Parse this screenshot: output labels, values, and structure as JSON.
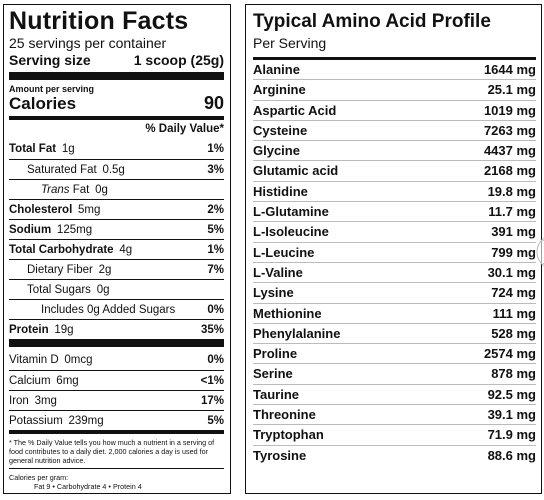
{
  "nutrition": {
    "title": "Nutrition Facts",
    "servings": "25 servings per container",
    "serving_size_label": "Serving size",
    "serving_size_value": "1 scoop (25g)",
    "amount_per_serving": "Amount per serving",
    "calories_label": "Calories",
    "calories_value": "90",
    "dv_header": "% Daily Value*",
    "rows": [
      {
        "label_bold": "Total Fat",
        "amount": "1g",
        "pct": "1%"
      },
      {
        "label": "Saturated Fat",
        "amount": "0.5g",
        "pct": "3%"
      },
      {
        "label_italic": "Trans",
        "label": "Fat",
        "amount": "0g",
        "pct": ""
      },
      {
        "label_bold": "Cholesterol",
        "amount": "5mg",
        "pct": "2%"
      },
      {
        "label_bold": "Sodium",
        "amount": "125mg",
        "pct": "5%"
      },
      {
        "label_bold": "Total Carbohydrate",
        "amount": "4g",
        "pct": "1%"
      },
      {
        "label": "Dietary Fiber",
        "amount": "2g",
        "pct": "7%"
      },
      {
        "label": "Total Sugars",
        "amount": "0g",
        "pct": ""
      },
      {
        "label": "Includes 0g Added Sugars",
        "amount": "",
        "pct": "0%"
      },
      {
        "label_bold": "Protein",
        "amount": "19g",
        "pct": "35%"
      }
    ],
    "vitamins": [
      {
        "label": "Vitamin D",
        "amount": "0mcg",
        "pct": "0%"
      },
      {
        "label": "Calcium",
        "amount": "6mg",
        "pct": "<1%"
      },
      {
        "label": "Iron",
        "amount": "3mg",
        "pct": "17%"
      },
      {
        "label": "Potassium",
        "amount": "239mg",
        "pct": "5%"
      }
    ],
    "footnote": "* The % Daily Value tells you how much a nutrient in a serving of food contributes to a daily diet. 2,000 calories a day is used for general nutrition advice.",
    "calories_per_gram": "Calories per gram:",
    "calories_per_gram_values": "Fat 9  •  Carbohydrate 4  •  Protein 4"
  },
  "amino": {
    "title": "Typical Amino Acid Profile",
    "subtitle": "Per Serving",
    "rows": [
      {
        "name": "Alanine",
        "value": "1644 mg"
      },
      {
        "name": "Arginine",
        "value": "25.1 mg"
      },
      {
        "name": "Aspartic Acid",
        "value": "1019 mg"
      },
      {
        "name": "Cysteine",
        "value": "7263 mg"
      },
      {
        "name": "Glycine",
        "value": "4437 mg"
      },
      {
        "name": "Glutamic acid",
        "value": "2168 mg"
      },
      {
        "name": "Histidine",
        "value": "19.8 mg"
      },
      {
        "name": "L-Glutamine",
        "value": "11.7 mg"
      },
      {
        "name": "L-Isoleucine",
        "value": "391 mg"
      },
      {
        "name": "L-Leucine",
        "value": "799 mg"
      },
      {
        "name": "L-Valine",
        "value": "30.1 mg"
      },
      {
        "name": "Lysine",
        "value": "724 mg"
      },
      {
        "name": "Methionine",
        "value": "111 mg"
      },
      {
        "name": "Phenylalanine",
        "value": "528 mg"
      },
      {
        "name": "Proline",
        "value": "2574 mg"
      },
      {
        "name": "Serine",
        "value": "878 mg"
      },
      {
        "name": "Taurine",
        "value": "92.5 mg"
      },
      {
        "name": "Threonine",
        "value": "39.1 mg"
      },
      {
        "name": "Tryptophan",
        "value": "71.9 mg"
      },
      {
        "name": "Tyrosine",
        "value": "88.6 mg"
      }
    ]
  },
  "icons": {
    "next": "chevron-right-icon"
  }
}
